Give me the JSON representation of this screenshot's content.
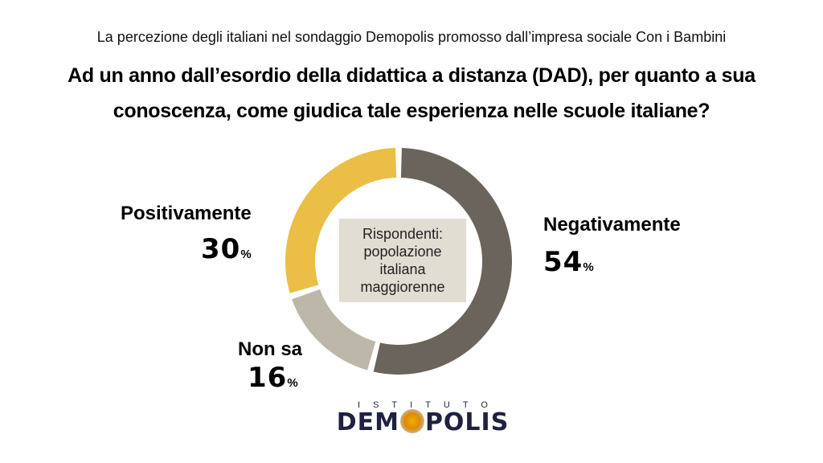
{
  "header": {
    "subtitle": "La percezione degli italiani nel sondaggio Demopolis promosso dall’impresa sociale Con i Bambini",
    "title_line1": "Ad un anno dall’esordio della didattica a distanza (DAD), per quanto a sua",
    "title_line2": "conoscenza, come giudica tale esperienza nelle scuole italiane?"
  },
  "chart_data": {
    "type": "pie",
    "variant": "donut",
    "title": "Ad un anno dall’esordio della didattica a distanza (DAD), per quanto a sua conoscenza, come giudica tale esperienza nelle scuole italiane?",
    "center_text": [
      "Rispondenti:",
      "popolazione",
      "italiana",
      "maggiorenne"
    ],
    "unit": "%",
    "slices": [
      {
        "label": "Negativamente",
        "value": 54,
        "display": "54",
        "color": "#6b645c"
      },
      {
        "label": "Non sa",
        "value": 16,
        "display": "16",
        "color": "#bdb7aa"
      },
      {
        "label": "Positivamente",
        "value": 30,
        "display": "30",
        "color": "#ebbe45"
      }
    ]
  },
  "logo": {
    "top": "ISTITUTO",
    "main_left": "DEM",
    "main_right": "POLIS"
  }
}
